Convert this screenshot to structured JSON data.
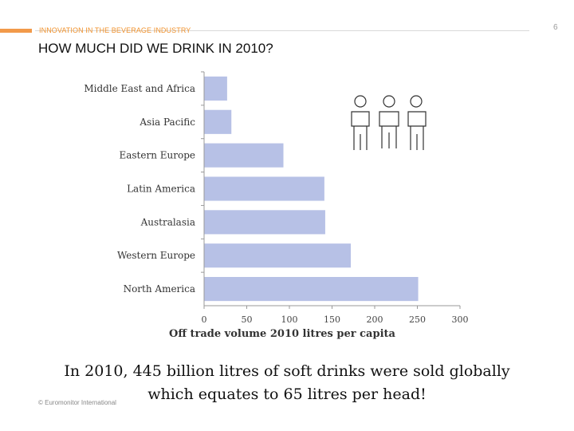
{
  "header": {
    "supertitle": "INNOVATION IN THE BEVERAGE INDUSTRY",
    "page_number": "6",
    "accent_color": "#f29a4a"
  },
  "title": "HOW MUCH DID WE DRINK IN 2010?",
  "chart_data": {
    "type": "bar",
    "orientation": "horizontal",
    "categories": [
      "Middle East and Africa",
      "Asia Pacific",
      "Eastern Europe",
      "Latin America",
      "Australasia",
      "Western Europe",
      "North America"
    ],
    "values": [
      27,
      32,
      93,
      141,
      142,
      172,
      251
    ],
    "xlabel": "Off trade volume 2010 litres per capita",
    "xlim": [
      0,
      300
    ],
    "xticks": [
      "0",
      "50",
      "100",
      "150",
      "200",
      "250",
      "300"
    ],
    "bar_color": "#b7c1e6",
    "grid": false
  },
  "people_icon": "group-of-people-icon",
  "conclusion_line1": "In 2010, 445 billion litres of soft drinks were sold globally",
  "conclusion_line2": "which equates to 65 litres per head!",
  "footer": "© Euromonitor International"
}
